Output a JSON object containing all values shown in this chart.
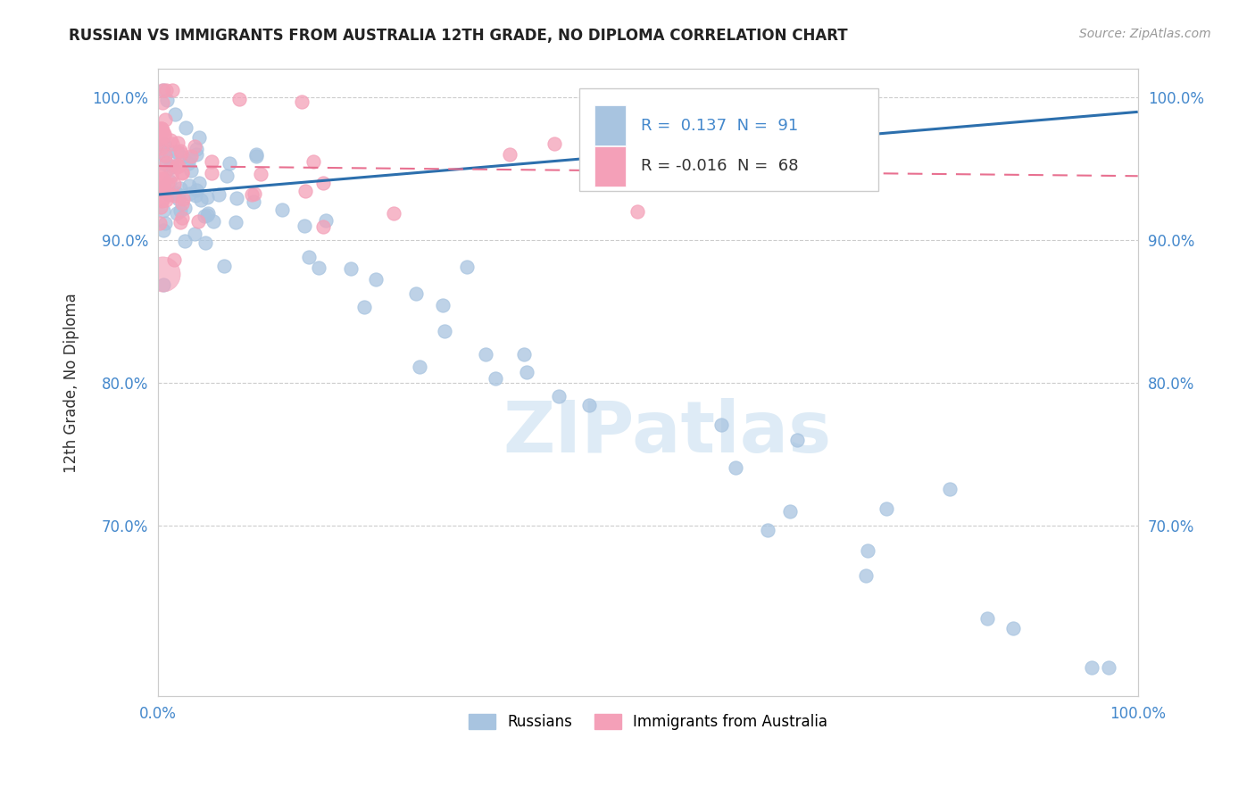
{
  "title": "RUSSIAN VS IMMIGRANTS FROM AUSTRALIA 12TH GRADE, NO DIPLOMA CORRELATION CHART",
  "source": "Source: ZipAtlas.com",
  "ylabel": "12th Grade, No Diploma",
  "x_min": 0.0,
  "x_max": 1.0,
  "y_min": 0.58,
  "y_max": 1.02,
  "y_ticks": [
    0.7,
    0.8,
    0.9,
    1.0
  ],
  "y_tick_labels": [
    "70.0%",
    "80.0%",
    "90.0%",
    "100.0%"
  ],
  "blue_R": 0.137,
  "blue_N": 91,
  "pink_R": -0.016,
  "pink_N": 68,
  "blue_color": "#a8c4e0",
  "pink_color": "#f4a0b8",
  "blue_line_color": "#2c6fad",
  "pink_line_color": "#e87090",
  "legend_label_blue": "Russians",
  "legend_label_pink": "Immigrants from Australia",
  "watermark": "ZIPatlas",
  "dot_size": 120
}
